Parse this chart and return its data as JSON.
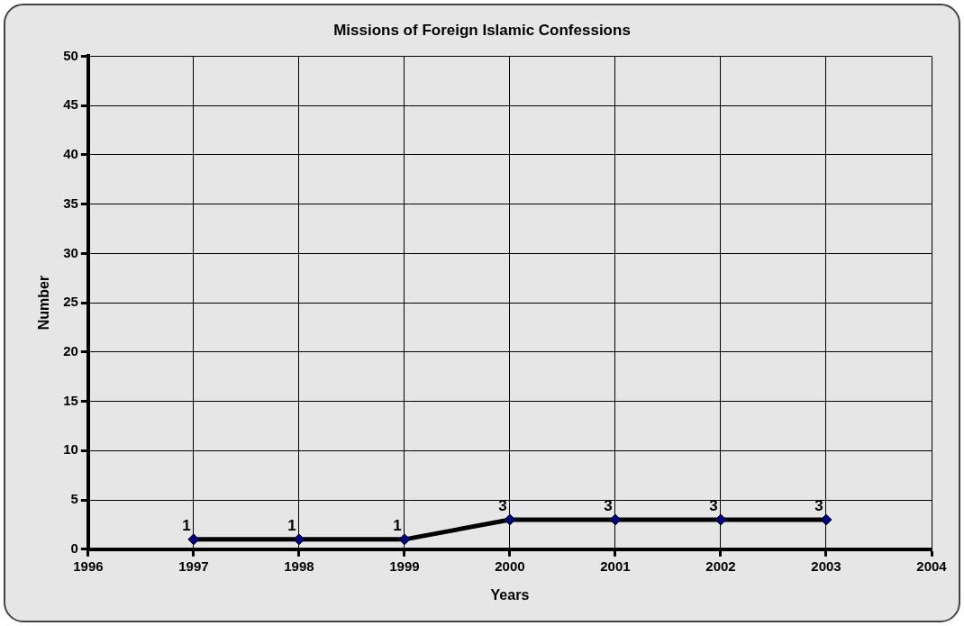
{
  "chart_data": {
    "type": "line",
    "title": "Missions of Foreign Islamic Confessions",
    "xlabel": "Years",
    "ylabel": "Number",
    "x": [
      1997,
      1998,
      1999,
      2000,
      2001,
      2002,
      2003
    ],
    "series": [
      {
        "color": "#000000",
        "values": [
          1,
          1,
          1,
          3,
          3,
          3,
          3
        ]
      }
    ],
    "xlim": [
      1996,
      2004
    ],
    "xticks": [
      1996,
      1997,
      1998,
      1999,
      2000,
      2001,
      2002,
      2003,
      2004
    ],
    "ylim": [
      0,
      50
    ],
    "yticks": [
      0,
      5,
      10,
      15,
      20,
      25,
      30,
      35,
      40,
      45,
      50
    ],
    "grid": true,
    "marker": "diamond",
    "line_style": "solid",
    "data_labels": true
  }
}
